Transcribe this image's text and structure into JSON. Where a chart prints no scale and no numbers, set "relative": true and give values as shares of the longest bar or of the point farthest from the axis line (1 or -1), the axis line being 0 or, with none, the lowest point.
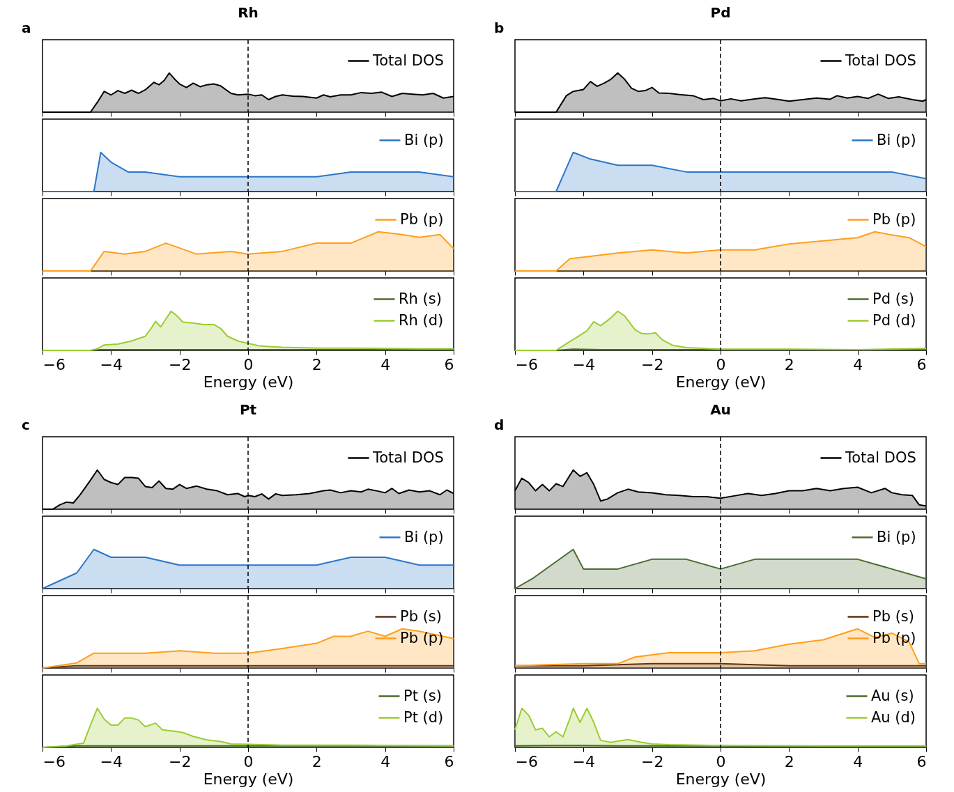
{
  "chart_data": [
    {
      "type": "area",
      "relative": true,
      "title": "Rh",
      "annotations": [
        "a"
      ],
      "xlim": [
        -6,
        6
      ],
      "xticks": [
        -6,
        -4,
        -2,
        0,
        2,
        4,
        6
      ],
      "tick_labels": false,
      "legend": "top right",
      "grid": false,
      "ref_lines": [
        {
          "axis": "x",
          "value": 0,
          "line_style": "dashed"
        }
      ],
      "series": [
        {
          "name": "Total DOS",
          "color": "#000000",
          "x": [
            -6,
            -4.6,
            -4.4,
            -4.2,
            -4.0,
            -3.8,
            -3.6,
            -3.4,
            -3.2,
            -3.0,
            -2.75,
            -2.6,
            -2.45,
            -2.3,
            -2.15,
            -2.0,
            -1.8,
            -1.6,
            -1.4,
            -1.2,
            -1.0,
            -0.8,
            -0.5,
            -0.3,
            0,
            0.2,
            0.4,
            0.6,
            0.8,
            1.0,
            1.3,
            1.6,
            2.0,
            2.2,
            2.4,
            2.7,
            3.0,
            3.3,
            3.6,
            3.9,
            4.2,
            4.5,
            4.8,
            5.1,
            5.4,
            5.7,
            6.0
          ],
          "values": [
            0,
            0,
            0.25,
            0.53,
            0.44,
            0.55,
            0.48,
            0.56,
            0.48,
            0.57,
            0.76,
            0.7,
            0.81,
            1,
            0.85,
            0.72,
            0.63,
            0.74,
            0.65,
            0.7,
            0.72,
            0.67,
            0.48,
            0.44,
            0.46,
            0.42,
            0.44,
            0.32,
            0.4,
            0.44,
            0.41,
            0.4,
            0.36,
            0.44,
            0.39,
            0.44,
            0.44,
            0.5,
            0.48,
            0.51,
            0.4,
            0.48,
            0.46,
            0.44,
            0.48,
            0.36,
            0.4
          ]
        }
      ]
    },
    {
      "type": "area",
      "relative": true,
      "xlim": [
        -6,
        6
      ],
      "xticks": [
        -6,
        -4,
        -2,
        0,
        2,
        4,
        6
      ],
      "tick_labels": false,
      "legend": "top right",
      "grid": false,
      "ref_lines": [
        {
          "axis": "x",
          "value": 0,
          "line_style": "dashed"
        }
      ],
      "series": [
        {
          "name": "Bi (p)",
          "color": "#2b76c8",
          "x": [
            -6,
            -4.5,
            -4.3,
            -4.0,
            -3.5,
            -3.0,
            -2.0,
            -1.0,
            0,
            1,
            2,
            3,
            4,
            5,
            6
          ],
          "values": [
            0,
            0,
            1,
            0.75,
            0.5,
            0.5,
            0.38,
            0.38,
            0.38,
            0.38,
            0.38,
            0.5,
            0.5,
            0.5,
            0.38
          ]
        }
      ]
    },
    {
      "type": "area",
      "relative": true,
      "xlim": [
        -6,
        6
      ],
      "xticks": [
        -6,
        -4,
        -2,
        0,
        2,
        4,
        6
      ],
      "tick_labels": false,
      "legend": "top right",
      "grid": false,
      "ref_lines": [
        {
          "axis": "x",
          "value": 0,
          "line_style": "dashed"
        }
      ],
      "series": [
        {
          "name": "Pb (p)",
          "color": "#ff9e1b",
          "x": [
            -6,
            -4.6,
            -4.2,
            -3.6,
            -3.0,
            -2.4,
            -1.5,
            -0.5,
            0,
            1,
            2,
            3,
            3.8,
            4.5,
            5.0,
            5.6,
            6
          ],
          "values": [
            0,
            0,
            0.5,
            0.43,
            0.5,
            0.71,
            0.43,
            0.5,
            0.43,
            0.5,
            0.71,
            0.71,
            1,
            0.93,
            0.86,
            0.93,
            0.57
          ]
        }
      ]
    },
    {
      "type": "area",
      "relative": true,
      "xlabel": "Energy (eV)",
      "xlim": [
        -6,
        6
      ],
      "xticks": [
        -6,
        -4,
        -2,
        0,
        2,
        4,
        6
      ],
      "tick_labels": "x",
      "legend": "top right",
      "grid": false,
      "ref_lines": [
        {
          "axis": "x",
          "value": 0,
          "line_style": "dashed"
        }
      ],
      "series": [
        {
          "name": "Rh (s)",
          "color": "#4a6b2e",
          "x": [
            -6,
            -4.6,
            -4.3,
            -3,
            -2,
            0,
            2,
            4,
            6
          ],
          "values": [
            0,
            0,
            0.02,
            0.02,
            0.02,
            0.02,
            0.02,
            0.02,
            0.02
          ]
        },
        {
          "name": "Rh (d)",
          "color": "#9acd32",
          "x": [
            -6,
            -4.6,
            -4.4,
            -4.2,
            -3.8,
            -3.4,
            -3.0,
            -2.8,
            -2.7,
            -2.55,
            -2.4,
            -2.25,
            -2.1,
            -1.9,
            -1.6,
            -1.3,
            -1.0,
            -0.8,
            -0.6,
            -0.3,
            0,
            0.3,
            0.6,
            1,
            2,
            3,
            4,
            5,
            6
          ],
          "values": [
            0,
            0,
            0.04,
            0.14,
            0.16,
            0.24,
            0.36,
            0.6,
            0.74,
            0.6,
            0.8,
            1,
            0.9,
            0.72,
            0.7,
            0.66,
            0.66,
            0.56,
            0.36,
            0.24,
            0.18,
            0.12,
            0.1,
            0.08,
            0.06,
            0.06,
            0.05,
            0.04,
            0.04
          ]
        }
      ]
    },
    {
      "type": "area",
      "relative": true,
      "title": "Pd",
      "annotations": [
        "b"
      ],
      "xlim": [
        -6,
        6
      ],
      "xticks": [
        -6,
        -4,
        -2,
        0,
        2,
        4,
        6
      ],
      "tick_labels": false,
      "legend": "top right",
      "grid": false,
      "ref_lines": [
        {
          "axis": "x",
          "value": 0,
          "line_style": "dashed"
        }
      ],
      "series": [
        {
          "name": "Total DOS",
          "color": "#000000",
          "x": [
            -6,
            -4.8,
            -4.5,
            -4.3,
            -4.0,
            -3.8,
            -3.6,
            -3.4,
            -3.2,
            -3.0,
            -2.8,
            -2.6,
            -2.4,
            -2.2,
            -2.0,
            -1.8,
            -1.5,
            -1.2,
            -0.8,
            -0.5,
            -0.2,
            0,
            0.3,
            0.6,
            1.0,
            1.3,
            1.7,
            2.0,
            2.4,
            2.8,
            3.2,
            3.4,
            3.7,
            4.0,
            4.3,
            4.6,
            4.9,
            5.2,
            5.6,
            5.9,
            6
          ],
          "values": [
            0,
            0,
            0.42,
            0.53,
            0.58,
            0.78,
            0.66,
            0.74,
            0.84,
            1,
            0.84,
            0.61,
            0.53,
            0.55,
            0.63,
            0.49,
            0.48,
            0.45,
            0.42,
            0.32,
            0.35,
            0.29,
            0.34,
            0.29,
            0.34,
            0.37,
            0.32,
            0.28,
            0.32,
            0.36,
            0.33,
            0.42,
            0.36,
            0.4,
            0.35,
            0.46,
            0.35,
            0.39,
            0.32,
            0.28,
            0.32
          ]
        }
      ]
    },
    {
      "type": "area",
      "relative": true,
      "xlim": [
        -6,
        6
      ],
      "xticks": [
        -6,
        -4,
        -2,
        0,
        2,
        4,
        6
      ],
      "tick_labels": false,
      "legend": "top right",
      "grid": false,
      "ref_lines": [
        {
          "axis": "x",
          "value": 0,
          "line_style": "dashed"
        }
      ],
      "series": [
        {
          "name": "Bi (p)",
          "color": "#2b76c8",
          "x": [
            -6,
            -4.8,
            -4.3,
            -3.8,
            -3,
            -2,
            -1,
            0,
            1,
            2,
            3,
            4,
            5,
            6
          ],
          "values": [
            0,
            0,
            1,
            0.83,
            0.67,
            0.67,
            0.5,
            0.5,
            0.5,
            0.5,
            0.5,
            0.5,
            0.5,
            0.33
          ]
        }
      ]
    },
    {
      "type": "area",
      "relative": true,
      "xlim": [
        -6,
        6
      ],
      "xticks": [
        -6,
        -4,
        -2,
        0,
        2,
        4,
        6
      ],
      "tick_labels": false,
      "legend": "top right",
      "grid": false,
      "ref_lines": [
        {
          "axis": "x",
          "value": 0,
          "line_style": "dashed"
        }
      ],
      "series": [
        {
          "name": "Pb (p)",
          "color": "#ff9e1b",
          "x": [
            -6,
            -4.8,
            -4.4,
            -3.0,
            -2.0,
            -1,
            0,
            1,
            2,
            3,
            4,
            4.5,
            5,
            5.5,
            6
          ],
          "values": [
            0,
            0,
            0.31,
            0.46,
            0.54,
            0.46,
            0.54,
            0.54,
            0.69,
            0.77,
            0.85,
            1,
            0.92,
            0.85,
            0.62
          ]
        }
      ]
    },
    {
      "type": "area",
      "relative": true,
      "xlabel": "Energy (eV)",
      "xlim": [
        -6,
        6
      ],
      "xticks": [
        -6,
        -4,
        -2,
        0,
        2,
        4,
        6
      ],
      "tick_labels": "x",
      "legend": "top right",
      "grid": false,
      "ref_lines": [
        {
          "axis": "x",
          "value": 0,
          "line_style": "dashed"
        }
      ],
      "series": [
        {
          "name": "Pd (s)",
          "color": "#4a6b2e",
          "x": [
            -6,
            -4.8,
            -4.3,
            -3.5,
            -2,
            0,
            2,
            4,
            6
          ],
          "values": [
            0,
            0,
            0.03,
            0.02,
            0.02,
            0.02,
            0.02,
            0.02,
            0.02
          ]
        },
        {
          "name": "Pd (d)",
          "color": "#9acd32",
          "x": [
            -6,
            -4.8,
            -4.5,
            -4.2,
            -3.9,
            -3.7,
            -3.5,
            -3.2,
            -3.0,
            -2.8,
            -2.5,
            -2.3,
            -2.1,
            -1.9,
            -1.7,
            -1.4,
            -1.0,
            0,
            2,
            4,
            6
          ],
          "values": [
            0,
            0,
            0.17,
            0.33,
            0.5,
            0.73,
            0.63,
            0.83,
            1,
            0.88,
            0.53,
            0.43,
            0.42,
            0.45,
            0.27,
            0.13,
            0.07,
            0.03,
            0.03,
            0.02,
            0.05
          ]
        }
      ]
    },
    {
      "type": "area",
      "relative": true,
      "title": "Pt",
      "annotations": [
        "c"
      ],
      "xlim": [
        -6,
        6
      ],
      "xticks": [
        -6,
        -4,
        -2,
        0,
        2,
        4,
        6
      ],
      "tick_labels": false,
      "legend": "top right",
      "grid": false,
      "ref_lines": [
        {
          "axis": "x",
          "value": 0,
          "line_style": "dashed"
        }
      ],
      "series": [
        {
          "name": "Total DOS",
          "color": "#000000",
          "x": [
            -6,
            -5.7,
            -5.5,
            -5.3,
            -5.1,
            -4.9,
            -4.6,
            -4.4,
            -4.2,
            -4.0,
            -3.8,
            -3.6,
            -3.4,
            -3.2,
            -3.0,
            -2.8,
            -2.6,
            -2.4,
            -2.2,
            -2.0,
            -1.8,
            -1.5,
            -1.2,
            -0.9,
            -0.6,
            -0.3,
            -0.1,
            0,
            0.2,
            0.4,
            0.6,
            0.8,
            1,
            1.4,
            1.8,
            2.2,
            2.4,
            2.7,
            3.0,
            3.3,
            3.5,
            3.8,
            4.0,
            4.2,
            4.4,
            4.7,
            5.0,
            5.3,
            5.6,
            5.8,
            6
          ],
          "values": [
            0,
            0,
            0.11,
            0.18,
            0.16,
            0.37,
            0.74,
            1,
            0.76,
            0.68,
            0.63,
            0.81,
            0.81,
            0.79,
            0.58,
            0.55,
            0.72,
            0.53,
            0.51,
            0.63,
            0.53,
            0.59,
            0.51,
            0.47,
            0.37,
            0.4,
            0.32,
            0.35,
            0.32,
            0.39,
            0.26,
            0.39,
            0.35,
            0.37,
            0.4,
            0.47,
            0.49,
            0.42,
            0.47,
            0.44,
            0.51,
            0.46,
            0.42,
            0.53,
            0.4,
            0.49,
            0.44,
            0.47,
            0.37,
            0.49,
            0.4
          ]
        }
      ]
    },
    {
      "type": "area",
      "relative": true,
      "xlim": [
        -6,
        6
      ],
      "xticks": [
        -6,
        -4,
        -2,
        0,
        2,
        4,
        6
      ],
      "tick_labels": false,
      "legend": "top right",
      "grid": false,
      "ref_lines": [
        {
          "axis": "x",
          "value": 0,
          "line_style": "dashed"
        }
      ],
      "series": [
        {
          "name": "Bi (p)",
          "color": "#2b76c8",
          "x": [
            -6,
            -5,
            -4.5,
            -4,
            -3,
            -2,
            -1,
            0,
            1,
            2,
            3,
            4,
            5,
            6
          ],
          "values": [
            0,
            0.4,
            1,
            0.8,
            0.8,
            0.6,
            0.6,
            0.6,
            0.6,
            0.6,
            0.8,
            0.8,
            0.6,
            0.6
          ]
        }
      ]
    },
    {
      "type": "area",
      "relative": true,
      "xlim": [
        -6,
        6
      ],
      "xticks": [
        -6,
        -4,
        -2,
        0,
        2,
        4,
        6
      ],
      "tick_labels": false,
      "legend": "top right",
      "grid": false,
      "ref_lines": [
        {
          "axis": "x",
          "value": 0,
          "line_style": "dashed"
        }
      ],
      "series": [
        {
          "name": "Pb (s)",
          "color": "#5c3317",
          "x": [
            -6,
            -5,
            -4,
            -2,
            0,
            2,
            4,
            6
          ],
          "values": [
            0,
            0.06,
            0.06,
            0.06,
            0.06,
            0.06,
            0.06,
            0.06
          ]
        },
        {
          "name": "Pb (p)",
          "color": "#ff9e1b",
          "x": [
            -6,
            -5,
            -4.5,
            -3,
            -2,
            -1,
            0,
            1,
            2,
            2.5,
            3,
            3.5,
            4,
            4.5,
            5,
            6
          ],
          "values": [
            0,
            0.13,
            0.38,
            0.38,
            0.44,
            0.38,
            0.38,
            0.5,
            0.63,
            0.81,
            0.81,
            0.94,
            0.81,
            1,
            0.94,
            0.75
          ]
        }
      ]
    },
    {
      "type": "area",
      "relative": true,
      "xlabel": "Energy (eV)",
      "xlim": [
        -6,
        6
      ],
      "xticks": [
        -6,
        -4,
        -2,
        0,
        2,
        4,
        6
      ],
      "tick_labels": "x",
      "legend": "top right",
      "grid": false,
      "ref_lines": [
        {
          "axis": "x",
          "value": 0,
          "line_style": "dashed"
        }
      ],
      "series": [
        {
          "name": "Pt (s)",
          "color": "#4a6b2e",
          "x": [
            -6,
            -5,
            -4,
            -2,
            0,
            2,
            4,
            6
          ],
          "values": [
            0,
            0.04,
            0.04,
            0.04,
            0.04,
            0.04,
            0.04,
            0.04
          ]
        },
        {
          "name": "Pt (d)",
          "color": "#9acd32",
          "x": [
            -6,
            -5.3,
            -4.8,
            -4.6,
            -4.4,
            -4.2,
            -4.0,
            -3.8,
            -3.6,
            -3.4,
            -3.2,
            -3.0,
            -2.7,
            -2.5,
            -2.2,
            -1.9,
            -1.6,
            -1.2,
            -0.8,
            -0.5,
            0,
            1,
            3,
            6
          ],
          "values": [
            0,
            0.04,
            0.11,
            0.57,
            1,
            0.72,
            0.57,
            0.57,
            0.75,
            0.75,
            0.7,
            0.53,
            0.62,
            0.45,
            0.42,
            0.38,
            0.28,
            0.19,
            0.15,
            0.09,
            0.08,
            0.06,
            0.06,
            0.04
          ]
        }
      ]
    },
    {
      "type": "area",
      "relative": true,
      "title": "Au",
      "annotations": [
        "d"
      ],
      "xlim": [
        -6,
        6
      ],
      "xticks": [
        -6,
        -4,
        -2,
        0,
        2,
        4,
        6
      ],
      "tick_labels": false,
      "legend": "top right",
      "grid": false,
      "ref_lines": [
        {
          "axis": "x",
          "value": 0,
          "line_style": "dashed"
        }
      ],
      "series": [
        {
          "name": "Total DOS",
          "color": "#000000",
          "x": [
            -6,
            -5.8,
            -5.6,
            -5.4,
            -5.2,
            -5.0,
            -4.8,
            -4.6,
            -4.3,
            -4.1,
            -3.9,
            -3.7,
            -3.5,
            -3.3,
            -3.0,
            -2.7,
            -2.4,
            -2.0,
            -1.6,
            -1.2,
            -0.8,
            -0.4,
            0,
            0.4,
            0.8,
            1.2,
            1.6,
            2.0,
            2.4,
            2.8,
            3.2,
            3.6,
            4.0,
            4.4,
            4.8,
            5.0,
            5.3,
            5.6,
            5.8,
            6
          ],
          "values": [
            0.47,
            0.79,
            0.68,
            0.47,
            0.63,
            0.47,
            0.65,
            0.58,
            1,
            0.84,
            0.93,
            0.63,
            0.21,
            0.26,
            0.42,
            0.51,
            0.44,
            0.42,
            0.37,
            0.35,
            0.32,
            0.32,
            0.28,
            0.34,
            0.4,
            0.35,
            0.4,
            0.47,
            0.47,
            0.53,
            0.47,
            0.53,
            0.56,
            0.42,
            0.53,
            0.42,
            0.37,
            0.35,
            0.11,
            0.08
          ]
        }
      ]
    },
    {
      "type": "area",
      "relative": true,
      "xlim": [
        -6,
        6
      ],
      "xticks": [
        -6,
        -4,
        -2,
        0,
        2,
        4,
        6
      ],
      "tick_labels": false,
      "legend": "top right",
      "grid": false,
      "ref_lines": [
        {
          "axis": "x",
          "value": 0,
          "line_style": "dashed"
        }
      ],
      "series": [
        {
          "name": "Bi (p)",
          "color": "#4a6b2e",
          "x": [
            -6,
            -5.5,
            -4.3,
            -4,
            -3,
            -2,
            -1,
            0,
            1,
            2,
            3,
            4,
            5,
            6
          ],
          "values": [
            0,
            0.25,
            1,
            0.5,
            0.5,
            0.75,
            0.75,
            0.5,
            0.75,
            0.75,
            0.75,
            0.75,
            0.5,
            0.25
          ]
        }
      ]
    },
    {
      "type": "area",
      "relative": true,
      "xlim": [
        -6,
        6
      ],
      "xticks": [
        -6,
        -4,
        -2,
        0,
        2,
        4,
        6
      ],
      "tick_labels": false,
      "legend": "top right",
      "grid": false,
      "ref_lines": [
        {
          "axis": "x",
          "value": 0,
          "line_style": "dashed"
        }
      ],
      "series": [
        {
          "name": "Pb (s)",
          "color": "#5c3317",
          "x": [
            -6,
            -4,
            -2,
            0,
            2,
            4,
            6
          ],
          "values": [
            0.06,
            0.06,
            0.11,
            0.11,
            0.06,
            0.06,
            0.06
          ]
        },
        {
          "name": "Pb (p)",
          "color": "#ff9e1b",
          "x": [
            -6,
            -4,
            -3,
            -2.5,
            -1.5,
            0,
            1,
            2,
            3,
            3.6,
            4,
            4.5,
            5,
            5.5,
            5.8,
            6
          ],
          "values": [
            0.06,
            0.11,
            0.11,
            0.28,
            0.39,
            0.39,
            0.44,
            0.61,
            0.72,
            0.89,
            1,
            0.78,
            0.89,
            0.67,
            0.11,
            0.11
          ]
        }
      ]
    },
    {
      "type": "area",
      "relative": true,
      "xlabel": "Energy (eV)",
      "xlim": [
        -6,
        6
      ],
      "xticks": [
        -6,
        -4,
        -2,
        0,
        2,
        4,
        6
      ],
      "tick_labels": "x",
      "legend": "top right",
      "grid": false,
      "ref_lines": [
        {
          "axis": "x",
          "value": 0,
          "line_style": "dashed"
        }
      ],
      "series": [
        {
          "name": "Au (s)",
          "color": "#4a6b2e",
          "x": [
            -6,
            -5,
            -4,
            -3,
            -2,
            0,
            2,
            4,
            6
          ],
          "values": [
            0.04,
            0.05,
            0.05,
            0.04,
            0.04,
            0.04,
            0.02,
            0.02,
            0.02
          ]
        },
        {
          "name": "Au (d)",
          "color": "#9acd32",
          "x": [
            -6,
            -5.8,
            -5.6,
            -5.4,
            -5.2,
            -5.0,
            -4.8,
            -4.6,
            -4.4,
            -4.3,
            -4.1,
            -3.9,
            -3.7,
            -3.5,
            -3.2,
            -3.0,
            -2.7,
            -2.3,
            -2.0,
            -1.5,
            0,
            3,
            6
          ],
          "values": [
            0.45,
            1,
            0.82,
            0.45,
            0.49,
            0.27,
            0.4,
            0.27,
            0.73,
            1,
            0.64,
            1,
            0.64,
            0.18,
            0.13,
            0.16,
            0.2,
            0.13,
            0.09,
            0.07,
            0.05,
            0.04,
            0.04
          ]
        }
      ]
    }
  ]
}
